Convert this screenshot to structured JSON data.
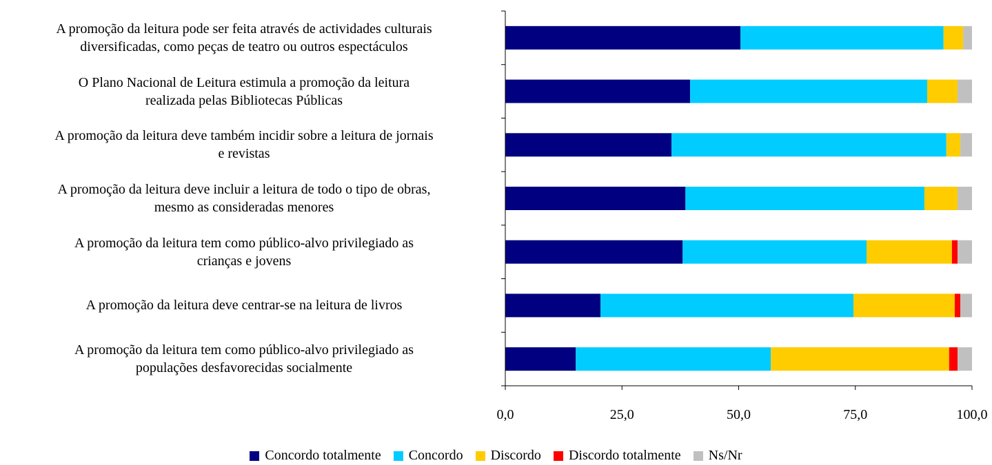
{
  "chart_data": {
    "type": "stacked-barh",
    "categories": [
      "A promoção da leitura pode ser feita através de actividades culturais\ndiversificadas, como peças de teatro ou outros espectáculos",
      "O Plano Nacional de Leitura estimula a promoção da leitura\nrealizada pelas Bibliotecas Públicas",
      "A promoção da leitura deve também incidir sobre a leitura de jornais\ne revistas",
      "A promoção da leitura deve incluir a leitura de todo o tipo de obras,\nmesmo as consideradas menores",
      "A promoção da leitura tem como público-alvo privilegiado as\ncrianças e jovens",
      "A promoção da leitura deve centrar-se na leitura de livros",
      "A promoção da leitura tem como público-alvo privilegiado as\npopulações desfavorecidas socialmente"
    ],
    "series": [
      {
        "name": "Concordo totalmente",
        "color": "#000080",
        "values": [
          50.4,
          39.6,
          35.6,
          38.6,
          38.0,
          20.4,
          15.1
        ]
      },
      {
        "name": "Concordo",
        "color": "#00ccff",
        "values": [
          43.5,
          50.8,
          58.9,
          51.2,
          39.4,
          54.2,
          41.8
        ]
      },
      {
        "name": "Discordo",
        "color": "#ffcc00",
        "values": [
          4.2,
          6.5,
          3.0,
          7.1,
          18.3,
          21.7,
          38.2
        ]
      },
      {
        "name": "Discordo totalmente",
        "color": "#ff0000",
        "values": [
          0,
          0,
          0,
          0,
          1.2,
          1.2,
          1.8
        ]
      },
      {
        "name": "Ns/Nr",
        "color": "#c0c0c0",
        "values": [
          1.9,
          3.1,
          2.5,
          3.1,
          3.1,
          2.5,
          3.1
        ]
      }
    ],
    "xlim": [
      0,
      100
    ],
    "xticks": [
      {
        "value": 0,
        "label": "0,0"
      },
      {
        "value": 25,
        "label": "25,0"
      },
      {
        "value": 50,
        "label": "50,0"
      },
      {
        "value": 75,
        "label": "75,0"
      },
      {
        "value": 100,
        "label": "100,0"
      }
    ],
    "legend": "bottom"
  }
}
